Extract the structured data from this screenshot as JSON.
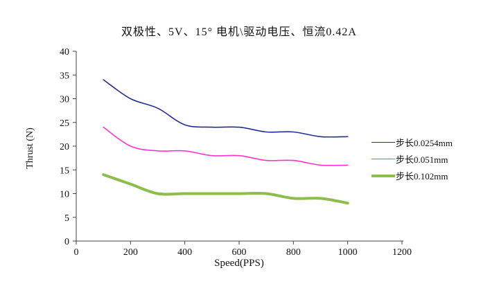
{
  "title": "双极性、5V、15° 电机\\驱动电压、恒流0.42A",
  "chart_data": {
    "type": "line",
    "title": "双极性、5V、15° 电机\\驱动电压、恒流0.42A",
    "xlabel": "Speed(PPS)",
    "ylabel": "Thrust (N)",
    "xlim": [
      0,
      1200
    ],
    "ylim": [
      0,
      40
    ],
    "xticks": [
      0,
      200,
      400,
      600,
      800,
      1000,
      1200
    ],
    "yticks": [
      0,
      5,
      10,
      15,
      20,
      25,
      30,
      35,
      40
    ],
    "grid": false,
    "legend_position": "right",
    "x": [
      100,
      200,
      300,
      400,
      500,
      600,
      700,
      800,
      900,
      1000
    ],
    "series": [
      {
        "name": "步长0.0254mm",
        "color": "#252C94",
        "line_width": 1.6,
        "values": [
          34,
          30,
          28,
          24.5,
          24,
          24,
          23,
          23,
          22,
          22
        ]
      },
      {
        "name": "步长0.051mm",
        "color": "#FF33CC",
        "line_width": 1.6,
        "values": [
          24,
          20,
          19,
          19,
          18,
          18,
          17,
          17,
          16,
          16
        ]
      },
      {
        "name": "步长0.102mm",
        "color": "#8DBE4B",
        "line_width": 4,
        "values": [
          14,
          12,
          10,
          10,
          10,
          10,
          10,
          9,
          9,
          8
        ]
      }
    ],
    "axis_color": "#404040"
  }
}
